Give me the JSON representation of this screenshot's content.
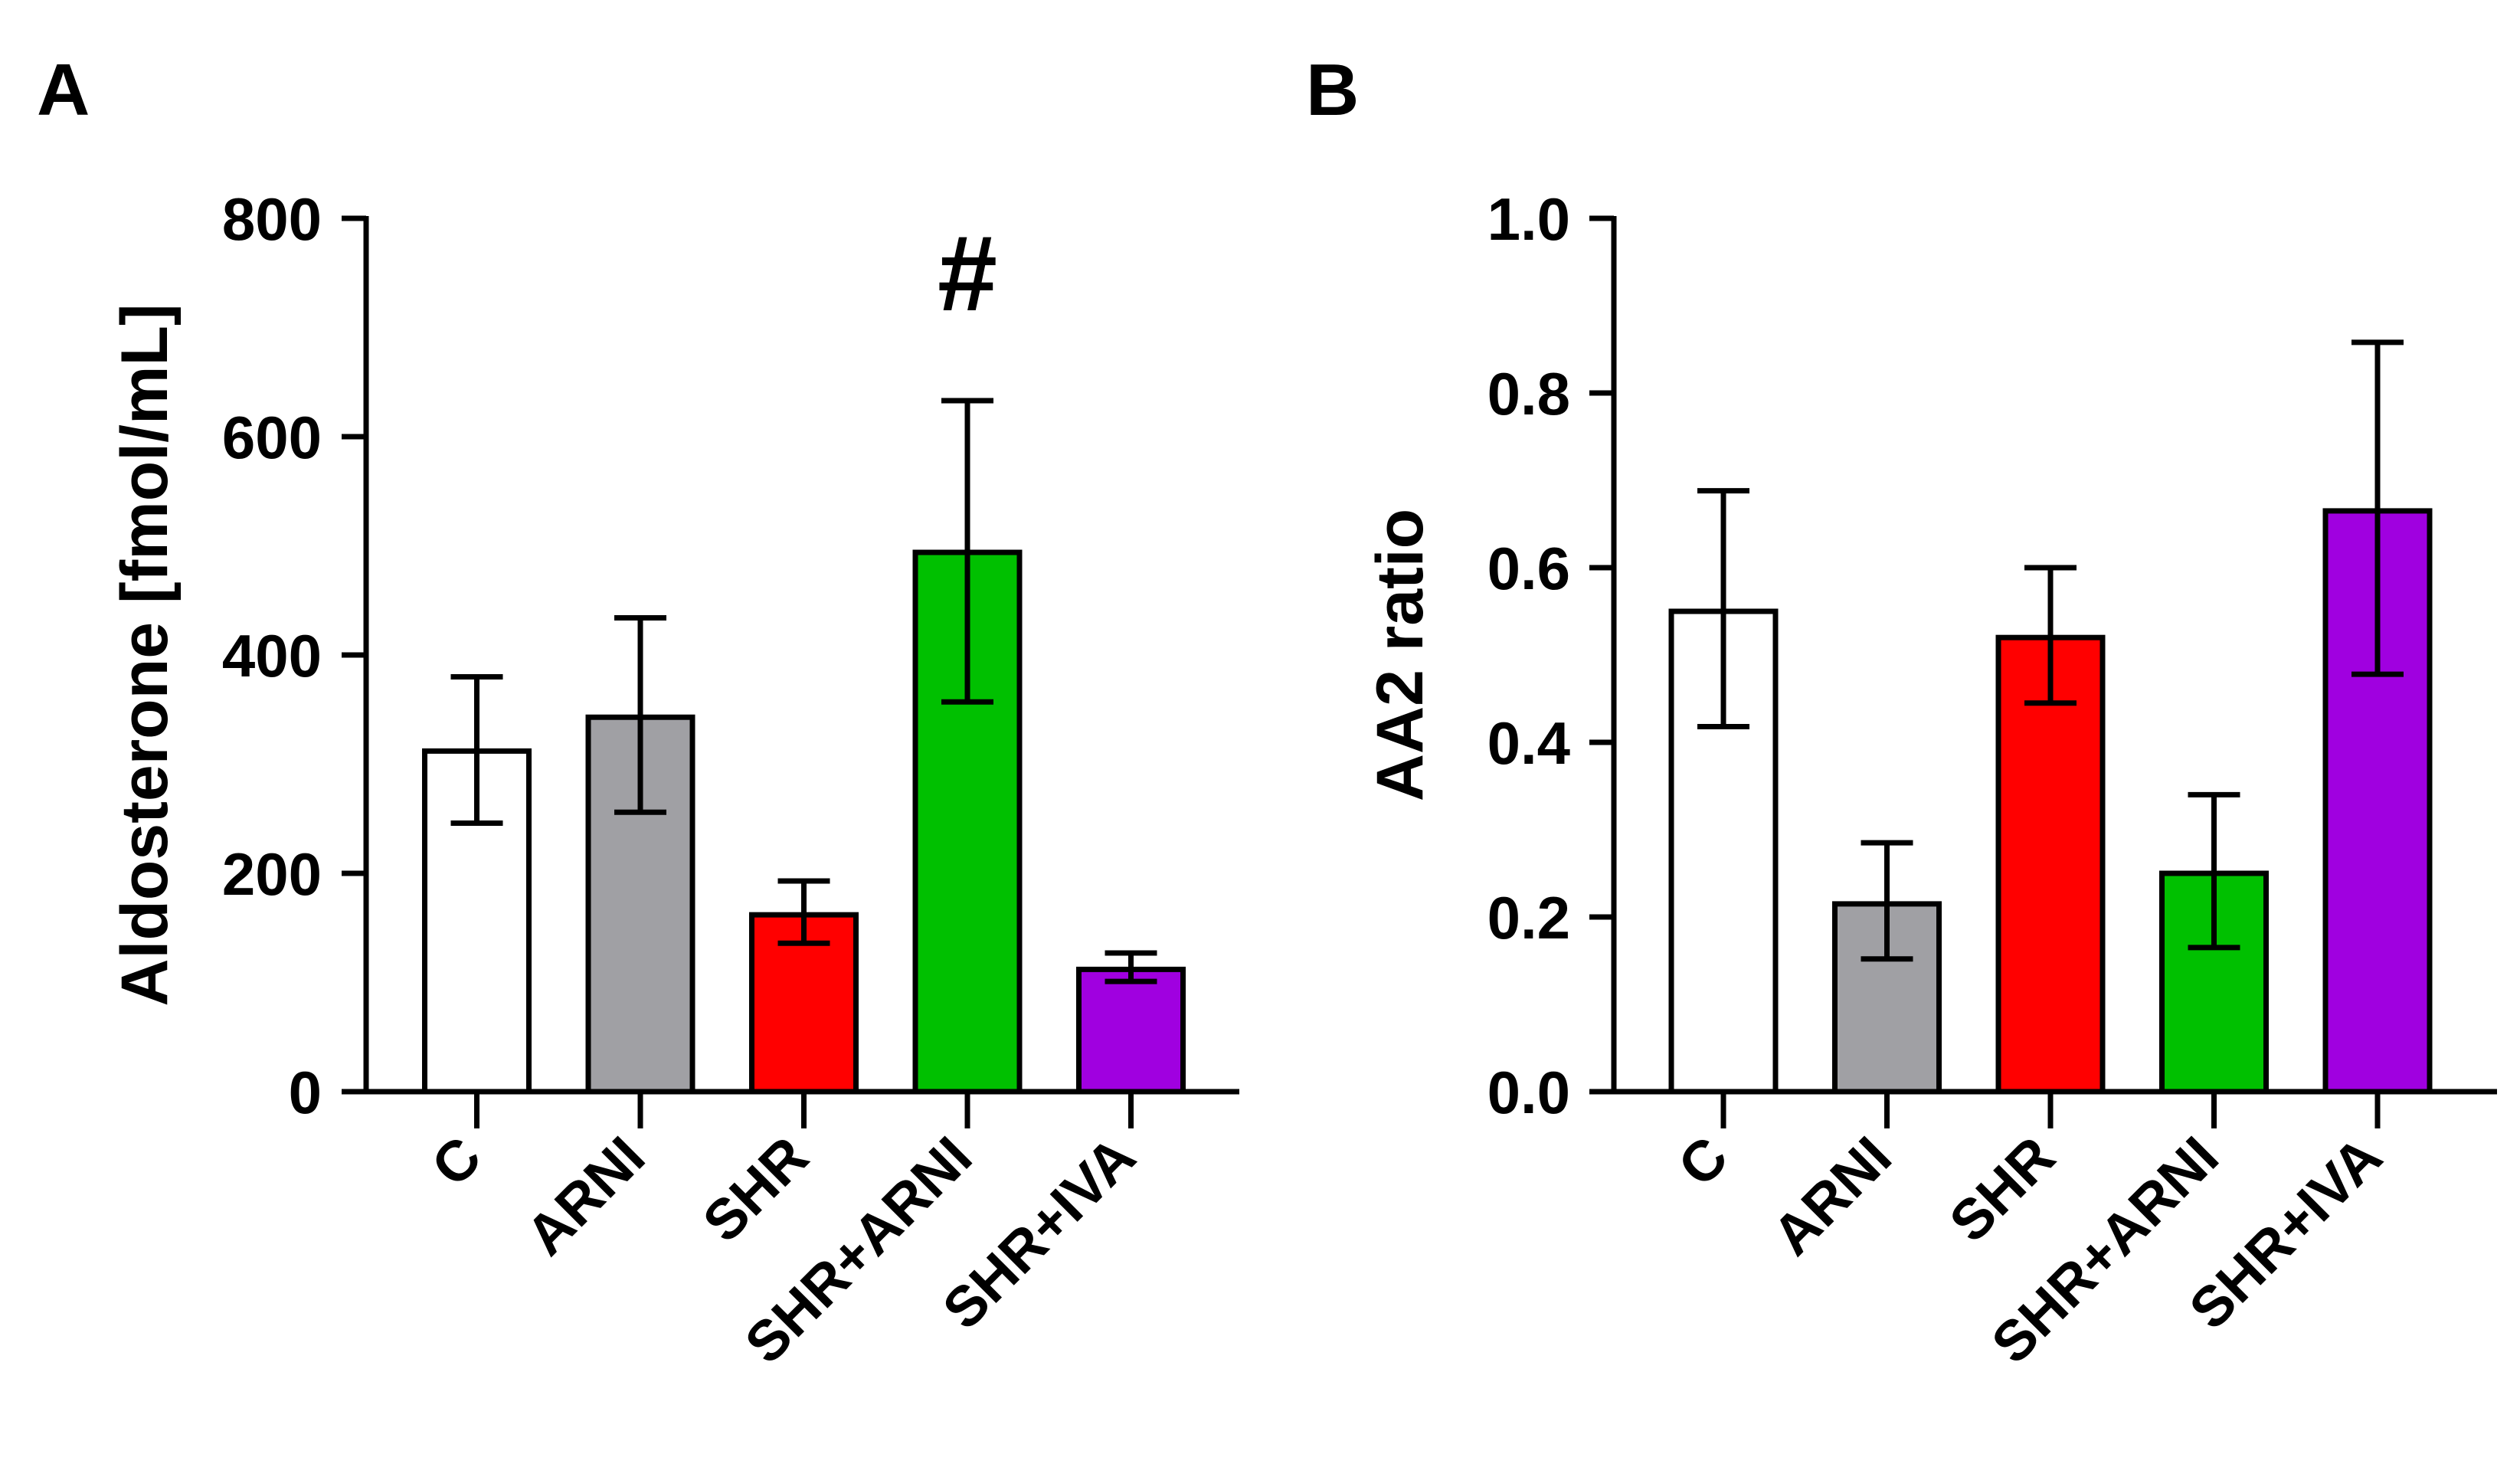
{
  "chart_data": [
    {
      "panel_label": "A",
      "type": "bar",
      "title": "",
      "xlabel": "",
      "ylabel": "Aldosterone [fmol/mL]",
      "ylim": [
        0,
        800
      ],
      "yticks": [
        0,
        200,
        400,
        600,
        800
      ],
      "ytick_labels": [
        "0",
        "200",
        "400",
        "600",
        "800"
      ],
      "categories": [
        "C",
        "ARNI",
        "SHR",
        "SHR+ARNI",
        "SHR+IVA"
      ],
      "values": [
        312,
        343,
        162,
        494,
        112
      ],
      "err_low": [
        246,
        256,
        136,
        357,
        101
      ],
      "err_high": [
        380,
        434,
        193,
        633,
        127
      ],
      "colors": [
        "#ffffff",
        "#a0a0a4",
        "#ff0000",
        "#00c000",
        "#a000e0"
      ],
      "annotations": [
        {
          "category": "SHR+ARNI",
          "text": "#"
        }
      ]
    },
    {
      "panel_label": "B",
      "type": "bar",
      "title": "",
      "xlabel": "",
      "ylabel": "AA2 ratio",
      "ylim": [
        0,
        1.0
      ],
      "yticks": [
        0,
        0.2,
        0.4,
        0.6,
        0.8,
        1.0
      ],
      "ytick_labels": [
        "0.0",
        "0.2",
        "0.4",
        "0.6",
        "0.8",
        "1.0"
      ],
      "categories": [
        "C",
        "ARNI",
        "SHR",
        "SHR+ARNI",
        "SHR+IVA"
      ],
      "values": [
        0.55,
        0.215,
        0.52,
        0.25,
        0.665
      ],
      "err_low": [
        0.418,
        0.152,
        0.445,
        0.165,
        0.478
      ],
      "err_high": [
        0.688,
        0.285,
        0.6,
        0.34,
        0.858
      ],
      "colors": [
        "#ffffff",
        "#a0a0a4",
        "#ff0000",
        "#00c000",
        "#a000e0"
      ],
      "annotations": []
    }
  ]
}
